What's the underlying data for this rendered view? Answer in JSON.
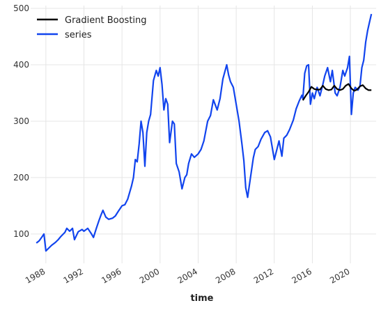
{
  "chart_data": {
    "type": "line",
    "title": "",
    "xlabel": "time",
    "ylabel": "",
    "xlim": [
      1986.4,
      2022.7
    ],
    "ylim": [
      48,
      505
    ],
    "grid": true,
    "legend_position": "top-left",
    "x_ticks": [
      1988,
      1992,
      1996,
      2000,
      2004,
      2008,
      2012,
      2016,
      2020
    ],
    "y_ticks": [
      100,
      200,
      300,
      400,
      500
    ],
    "series": [
      {
        "name": "Gradient Boosting",
        "color": "#000000",
        "x": [
          2015.0,
          2015.3,
          2015.6,
          2015.9,
          2016.2,
          2016.5,
          2016.8,
          2017.1,
          2017.4,
          2017.7,
          2018.0,
          2018.3,
          2018.6,
          2018.9,
          2019.2,
          2019.5,
          2019.8,
          2020.1,
          2020.4,
          2020.7,
          2021.0,
          2021.3,
          2021.6,
          2021.9,
          2022.2
        ],
        "y": [
          337,
          345,
          352,
          361,
          357,
          356,
          356,
          363,
          357,
          355,
          356,
          363,
          357,
          355,
          357,
          363,
          366,
          358,
          354,
          356,
          362,
          364,
          358,
          355,
          355
        ]
      },
      {
        "name": "series",
        "color": "#1144ee",
        "x": [
          1987.0,
          1987.3,
          1987.6,
          1987.8,
          1988.0,
          1988.3,
          1988.6,
          1989.0,
          1989.3,
          1989.6,
          1990.0,
          1990.2,
          1990.5,
          1990.8,
          1991.0,
          1991.4,
          1991.8,
          1992.0,
          1992.4,
          1992.8,
          1993.0,
          1993.3,
          1993.6,
          1993.8,
          1994.0,
          1994.3,
          1994.6,
          1995.0,
          1995.3,
          1995.6,
          1996.0,
          1996.3,
          1996.6,
          1997.0,
          1997.2,
          1997.4,
          1997.6,
          1997.8,
          1998.0,
          1998.2,
          1998.4,
          1998.6,
          1998.8,
          1999.0,
          1999.3,
          1999.6,
          1999.8,
          2000.0,
          2000.2,
          2000.4,
          2000.6,
          2000.8,
          2001.0,
          2001.3,
          2001.5,
          2001.7,
          2002.0,
          2002.3,
          2002.6,
          2002.8,
          2003.0,
          2003.3,
          2003.6,
          2004.0,
          2004.3,
          2004.6,
          2005.0,
          2005.3,
          2005.6,
          2006.0,
          2006.3,
          2006.6,
          2007.0,
          2007.2,
          2007.4,
          2007.7,
          2008.0,
          2008.3,
          2008.6,
          2008.8,
          2009.0,
          2009.2,
          2009.5,
          2009.8,
          2010.0,
          2010.3,
          2010.6,
          2011.0,
          2011.3,
          2011.6,
          2012.0,
          2012.2,
          2012.5,
          2012.8,
          2013.0,
          2013.3,
          2013.6,
          2014.0,
          2014.3,
          2014.6,
          2014.9,
          2015.0,
          2015.2,
          2015.4,
          2015.6,
          2015.8,
          2016.0,
          2016.2,
          2016.5,
          2016.8,
          2017.1,
          2017.3,
          2017.6,
          2017.9,
          2018.1,
          2018.4,
          2018.6,
          2018.9,
          2019.2,
          2019.4,
          2019.7,
          2019.9,
          2020.1,
          2020.3,
          2020.5,
          2020.8,
          2021.0,
          2021.2,
          2021.4,
          2021.6,
          2021.8,
          2022.0,
          2022.2
        ],
        "y": [
          84,
          88,
          95,
          100,
          70,
          75,
          80,
          85,
          90,
          96,
          103,
          110,
          105,
          110,
          90,
          104,
          108,
          105,
          110,
          100,
          94,
          110,
          125,
          134,
          142,
          130,
          126,
          128,
          132,
          140,
          150,
          152,
          162,
          185,
          200,
          232,
          228,
          260,
          300,
          280,
          220,
          280,
          300,
          312,
          372,
          390,
          380,
          395,
          365,
          320,
          340,
          330,
          262,
          300,
          295,
          225,
          210,
          180,
          200,
          205,
          225,
          242,
          236,
          242,
          250,
          265,
          300,
          310,
          338,
          320,
          340,
          375,
          400,
          382,
          370,
          360,
          330,
          300,
          260,
          230,
          182,
          165,
          200,
          235,
          250,
          255,
          268,
          280,
          283,
          272,
          232,
          245,
          265,
          238,
          270,
          275,
          285,
          302,
          322,
          335,
          346,
          340,
          385,
          398,
          400,
          330,
          350,
          340,
          360,
          345,
          365,
          380,
          395,
          370,
          390,
          350,
          345,
          360,
          390,
          380,
          395,
          415,
          312,
          350,
          360,
          355,
          362,
          395,
          408,
          440,
          460,
          475,
          490
        ]
      }
    ]
  }
}
